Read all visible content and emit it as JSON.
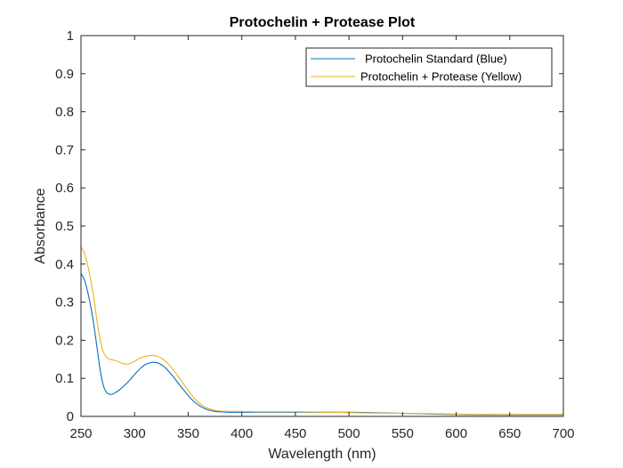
{
  "chart_data": {
    "type": "line",
    "title": "Protochelin + Protease Plot",
    "xlabel": "Wavelength (nm)",
    "ylabel": "Absorbance",
    "xlim": [
      250,
      700
    ],
    "ylim": [
      0,
      1
    ],
    "xticks": [
      250,
      300,
      350,
      400,
      450,
      500,
      550,
      600,
      650,
      700
    ],
    "yticks": [
      0,
      0.1,
      0.2,
      0.3,
      0.4,
      0.5,
      0.6,
      0.7,
      0.8,
      0.9,
      1
    ],
    "grid": false,
    "legend_position": "top-right",
    "series": [
      {
        "name": "Protochelin Standard (Blue)",
        "color": "#0072BD",
        "x": [
          250,
          253,
          256,
          259,
          262,
          265,
          268,
          271,
          274,
          277,
          280,
          283,
          286,
          290,
          295,
          300,
          305,
          310,
          315,
          318,
          322,
          326,
          330,
          335,
          340,
          345,
          350,
          355,
          360,
          365,
          370,
          375,
          380,
          390,
          400,
          420,
          450,
          480,
          500,
          520,
          550,
          580,
          600,
          630,
          660,
          700
        ],
        "y": [
          0.375,
          0.36,
          0.33,
          0.29,
          0.24,
          0.18,
          0.12,
          0.08,
          0.062,
          0.058,
          0.059,
          0.064,
          0.07,
          0.08,
          0.094,
          0.11,
          0.125,
          0.136,
          0.141,
          0.142,
          0.14,
          0.134,
          0.124,
          0.108,
          0.09,
          0.072,
          0.055,
          0.04,
          0.029,
          0.021,
          0.016,
          0.013,
          0.012,
          0.011,
          0.011,
          0.011,
          0.011,
          0.011,
          0.011,
          0.01,
          0.008,
          0.006,
          0.005,
          0.004,
          0.004,
          0.004
        ]
      },
      {
        "name": "Protochelin + Protease (Yellow)",
        "color": "#EDB120",
        "x": [
          250,
          253,
          256,
          259,
          262,
          265,
          268,
          271,
          274,
          277,
          280,
          283,
          286,
          290,
          295,
          300,
          305,
          310,
          315,
          318,
          322,
          326,
          330,
          335,
          340,
          345,
          350,
          355,
          360,
          365,
          370,
          375,
          380,
          390,
          400,
          420,
          450,
          480,
          500,
          520,
          550,
          580,
          600,
          630,
          660,
          700
        ],
        "y": [
          0.445,
          0.43,
          0.4,
          0.36,
          0.31,
          0.25,
          0.2,
          0.168,
          0.155,
          0.15,
          0.148,
          0.146,
          0.142,
          0.138,
          0.138,
          0.145,
          0.153,
          0.158,
          0.16,
          0.16,
          0.157,
          0.151,
          0.142,
          0.126,
          0.108,
          0.088,
          0.068,
          0.05,
          0.036,
          0.026,
          0.02,
          0.016,
          0.014,
          0.013,
          0.013,
          0.012,
          0.012,
          0.011,
          0.01,
          0.009,
          0.008,
          0.007,
          0.006,
          0.005,
          0.005,
          0.005
        ]
      }
    ]
  }
}
